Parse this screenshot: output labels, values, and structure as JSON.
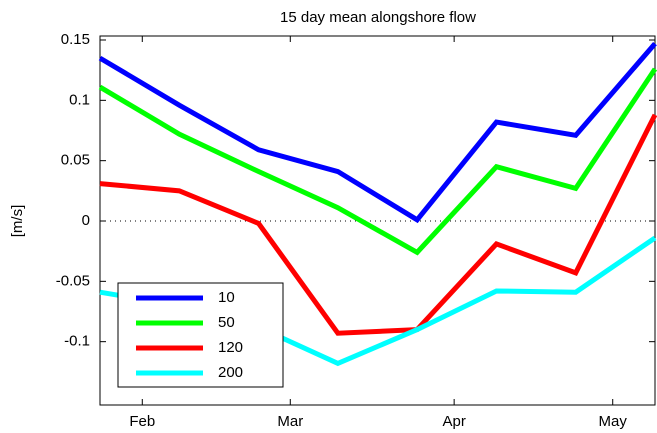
{
  "chart_data": {
    "type": "line",
    "title": "15 day mean alongshore flow",
    "y_label": "[m/s]",
    "x": [
      24,
      39,
      54,
      69,
      84,
      99,
      114,
      129
    ],
    "xlim": [
      24,
      129
    ],
    "xticks": [
      {
        "value": 32,
        "label": "Feb"
      },
      {
        "value": 60,
        "label": "Mar"
      },
      {
        "value": 91,
        "label": "Apr"
      },
      {
        "value": 121,
        "label": "May"
      }
    ],
    "ylim": [
      -0.15,
      0.15
    ],
    "yticks": [
      -0.1,
      -0.05,
      0,
      0.05,
      0.1,
      0.15
    ],
    "zero_line": true,
    "legend": "lower-left",
    "series": [
      {
        "name": "10",
        "color": "#0000ff",
        "values": [
          0.135,
          0.096,
          0.059,
          0.041,
          0.001,
          0.082,
          0.071,
          0.147
        ]
      },
      {
        "name": "50",
        "color": "#00ff00",
        "values": [
          0.111,
          0.072,
          0.041,
          0.011,
          -0.026,
          0.045,
          0.027,
          0.126
        ]
      },
      {
        "name": "120",
        "color": "#ff0000",
        "values": [
          0.031,
          0.025,
          -0.002,
          -0.093,
          -0.09,
          -0.019,
          -0.043,
          0.088
        ]
      },
      {
        "name": "200",
        "color": "#00ffff",
        "values": [
          -0.059,
          -0.07,
          -0.088,
          -0.118,
          -0.09,
          -0.058,
          -0.059,
          -0.014
        ]
      }
    ]
  }
}
